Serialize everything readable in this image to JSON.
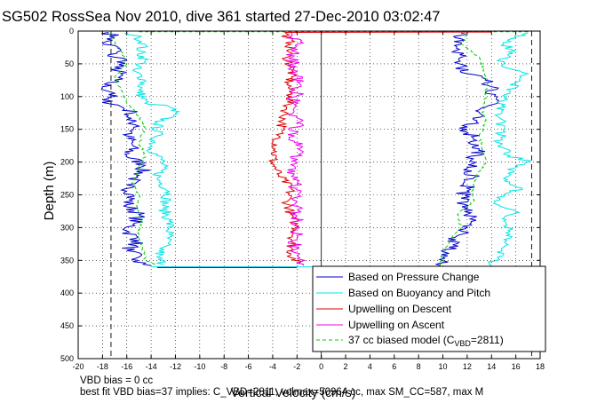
{
  "chart_data": {
    "type": "line",
    "title": "SG502 RossSea Nov 2010, dive 361 started 27-Dec-2010 03:02:47",
    "xlabel": "Vertical Velocity (cm/s)",
    "ylabel": "Depth (m)",
    "xlim": [
      -20,
      18
    ],
    "ylim": [
      0,
      500
    ],
    "y_reversed": true,
    "grid": true,
    "grid_style": "dotted",
    "xticks": [
      "-20",
      "-18",
      "-16",
      "-14",
      "-12",
      "-10",
      "-8",
      "-6",
      "-4",
      "-2",
      "0",
      "2",
      "4",
      "6",
      "8",
      "10",
      "12",
      "14",
      "16",
      "18"
    ],
    "yticks": [
      "0",
      "50",
      "100",
      "150",
      "200",
      "250",
      "300",
      "350",
      "400",
      "450",
      "500"
    ],
    "vertical_lines_dashed_x": [
      -17.3,
      17.3
    ],
    "legend_position": "lower-right",
    "series": [
      {
        "name": "Based on Pressure Change",
        "color": "#0000cc",
        "style": "solid",
        "descent": [
          [
            -17.5,
            2
          ],
          [
            -17,
            10
          ],
          [
            -18,
            18
          ],
          [
            -16.5,
            28
          ],
          [
            -17.5,
            36
          ],
          [
            -16,
            45
          ],
          [
            -17,
            55
          ],
          [
            -16.5,
            65
          ],
          [
            -17,
            75
          ],
          [
            -18,
            85
          ],
          [
            -17,
            95
          ],
          [
            -18,
            105
          ],
          [
            -16.5,
            115
          ],
          [
            -15.5,
            125
          ],
          [
            -16,
            135
          ],
          [
            -15,
            145
          ],
          [
            -16,
            160
          ],
          [
            -15.5,
            175
          ],
          [
            -16,
            190
          ],
          [
            -14.5,
            205
          ],
          [
            -15,
            220
          ],
          [
            -16,
            235
          ],
          [
            -15.5,
            250
          ],
          [
            -16,
            265
          ],
          [
            -15,
            280
          ],
          [
            -15.5,
            295
          ],
          [
            -16,
            305
          ],
          [
            -15,
            320
          ],
          [
            -16,
            335
          ],
          [
            -15,
            345
          ],
          [
            -15.5,
            352
          ],
          [
            -14,
            358
          ]
        ],
        "ascent": [
          [
            9.8,
            358
          ],
          [
            10,
            345
          ],
          [
            10.5,
            330
          ],
          [
            11,
            315
          ],
          [
            12,
            300
          ],
          [
            12.5,
            285
          ],
          [
            12,
            270
          ],
          [
            11.5,
            255
          ],
          [
            12,
            240
          ],
          [
            12.5,
            225
          ],
          [
            12,
            210
          ],
          [
            12.5,
            195
          ],
          [
            13,
            180
          ],
          [
            12.5,
            165
          ],
          [
            12,
            150
          ],
          [
            12.5,
            135
          ],
          [
            13,
            120
          ],
          [
            14.5,
            108
          ],
          [
            13.5,
            95
          ],
          [
            14,
            85
          ],
          [
            13.5,
            75
          ],
          [
            12,
            65
          ],
          [
            11.5,
            55
          ],
          [
            11,
            48
          ],
          [
            11.5,
            40
          ],
          [
            11,
            30
          ],
          [
            11.5,
            20
          ],
          [
            11,
            10
          ],
          [
            11.5,
            3
          ]
        ]
      },
      {
        "name": "Based on Buoyancy and Pitch",
        "color": "#00e5e5",
        "style": "solid",
        "descent": [
          [
            -16,
            2
          ],
          [
            -15,
            10
          ],
          [
            -14.5,
            20
          ],
          [
            -15,
            30
          ],
          [
            -14.5,
            45
          ],
          [
            -15.5,
            60
          ],
          [
            -14.5,
            75
          ],
          [
            -15,
            90
          ],
          [
            -14.5,
            110
          ],
          [
            -12.5,
            115
          ],
          [
            -12,
            125
          ],
          [
            -13.5,
            140
          ],
          [
            -13.5,
            160
          ],
          [
            -14,
            180
          ],
          [
            -13,
            200
          ],
          [
            -13.5,
            225
          ],
          [
            -12.5,
            245
          ],
          [
            -13,
            270
          ],
          [
            -12.5,
            290
          ],
          [
            -12.5,
            310
          ],
          [
            -13,
            330
          ],
          [
            -13.5,
            345
          ],
          [
            -13,
            356
          ]
        ],
        "ascent": [
          [
            14,
            358
          ],
          [
            14.5,
            345
          ],
          [
            15,
            330
          ],
          [
            15.5,
            310
          ],
          [
            15,
            290
          ],
          [
            16,
            275
          ],
          [
            14.5,
            265
          ],
          [
            15,
            250
          ],
          [
            16.5,
            240
          ],
          [
            15,
            225
          ],
          [
            16,
            205
          ],
          [
            17,
            200
          ],
          [
            15.5,
            190
          ],
          [
            14.5,
            170
          ],
          [
            15,
            150
          ],
          [
            14.5,
            130
          ],
          [
            15,
            120
          ],
          [
            14.5,
            110
          ],
          [
            15.5,
            95
          ],
          [
            16,
            80
          ],
          [
            17,
            65
          ],
          [
            15,
            55
          ],
          [
            14.5,
            45
          ],
          [
            16,
            30
          ],
          [
            15,
            20
          ],
          [
            16,
            10
          ],
          [
            17,
            3
          ]
        ]
      },
      {
        "name": "Upwelling on Descent",
        "color": "#dd0000",
        "style": "solid",
        "descent": [
          [
            -3,
            2
          ],
          [
            -2.5,
            20
          ],
          [
            -2.8,
            40
          ],
          [
            -2.4,
            60
          ],
          [
            -2.7,
            80
          ],
          [
            -2.5,
            100
          ],
          [
            -2.9,
            120
          ],
          [
            -3.2,
            140
          ],
          [
            -3.5,
            160
          ],
          [
            -3.8,
            180
          ],
          [
            -4,
            200
          ],
          [
            -3.5,
            220
          ],
          [
            -2.5,
            240
          ],
          [
            -2.8,
            260
          ],
          [
            -2.5,
            280
          ],
          [
            -2,
            300
          ],
          [
            -2.4,
            320
          ],
          [
            -2.5,
            340
          ],
          [
            -2,
            355
          ]
        ]
      },
      {
        "name": "Upwelling on Ascent",
        "color": "#ee00ee",
        "style": "solid",
        "ascent": [
          [
            -1.5,
            358
          ],
          [
            -1.8,
            340
          ],
          [
            -2.3,
            320
          ],
          [
            -1.8,
            300
          ],
          [
            -2.2,
            280
          ],
          [
            -2,
            260
          ],
          [
            -2.1,
            240
          ],
          [
            -2.3,
            220
          ],
          [
            -2,
            200
          ],
          [
            -1.9,
            180
          ],
          [
            -2.2,
            160
          ],
          [
            -2,
            140
          ],
          [
            -2.3,
            120
          ],
          [
            -2.1,
            100
          ],
          [
            -1.8,
            80
          ],
          [
            -2.2,
            60
          ],
          [
            -2.4,
            40
          ],
          [
            -2,
            20
          ],
          [
            -2.5,
            3
          ]
        ]
      },
      {
        "name": "37 cc biased model (C_VBD=2811)",
        "color": "#00cc00",
        "style": "dashed",
        "descent": [
          [
            -17.5,
            2
          ],
          [
            -17,
            15
          ],
          [
            -16.5,
            30
          ],
          [
            -16,
            50
          ],
          [
            -17,
            70
          ],
          [
            -16.5,
            90
          ],
          [
            -16,
            110
          ],
          [
            -15,
            130
          ],
          [
            -14.5,
            150
          ],
          [
            -15,
            170
          ],
          [
            -14.5,
            190
          ],
          [
            -15,
            210
          ],
          [
            -15.5,
            230
          ],
          [
            -15,
            250
          ],
          [
            -15.2,
            270
          ],
          [
            -14.8,
            290
          ],
          [
            -15,
            310
          ],
          [
            -14.7,
            330
          ],
          [
            -14.5,
            350
          ],
          [
            -13.5,
            358
          ]
        ],
        "ascent": [
          [
            9.8,
            358
          ],
          [
            10,
            340
          ],
          [
            10.5,
            320
          ],
          [
            11.5,
            300
          ],
          [
            11.2,
            280
          ],
          [
            12.5,
            260
          ],
          [
            12.4,
            240
          ],
          [
            12.8,
            220
          ],
          [
            13.5,
            200
          ],
          [
            13.2,
            180
          ],
          [
            13,
            160
          ],
          [
            13.5,
            140
          ],
          [
            13.3,
            120
          ],
          [
            13.5,
            100
          ],
          [
            13.7,
            80
          ],
          [
            13.3,
            60
          ],
          [
            13,
            40
          ],
          [
            11.5,
            20
          ],
          [
            12,
            3
          ]
        ]
      }
    ],
    "annotations": [
      "VBD bias = 0 cc",
      "best fit VBD bias=37 implies: C_VBD=2811, volmax=50964 cc, max SM_CC=587, max M"
    ]
  }
}
